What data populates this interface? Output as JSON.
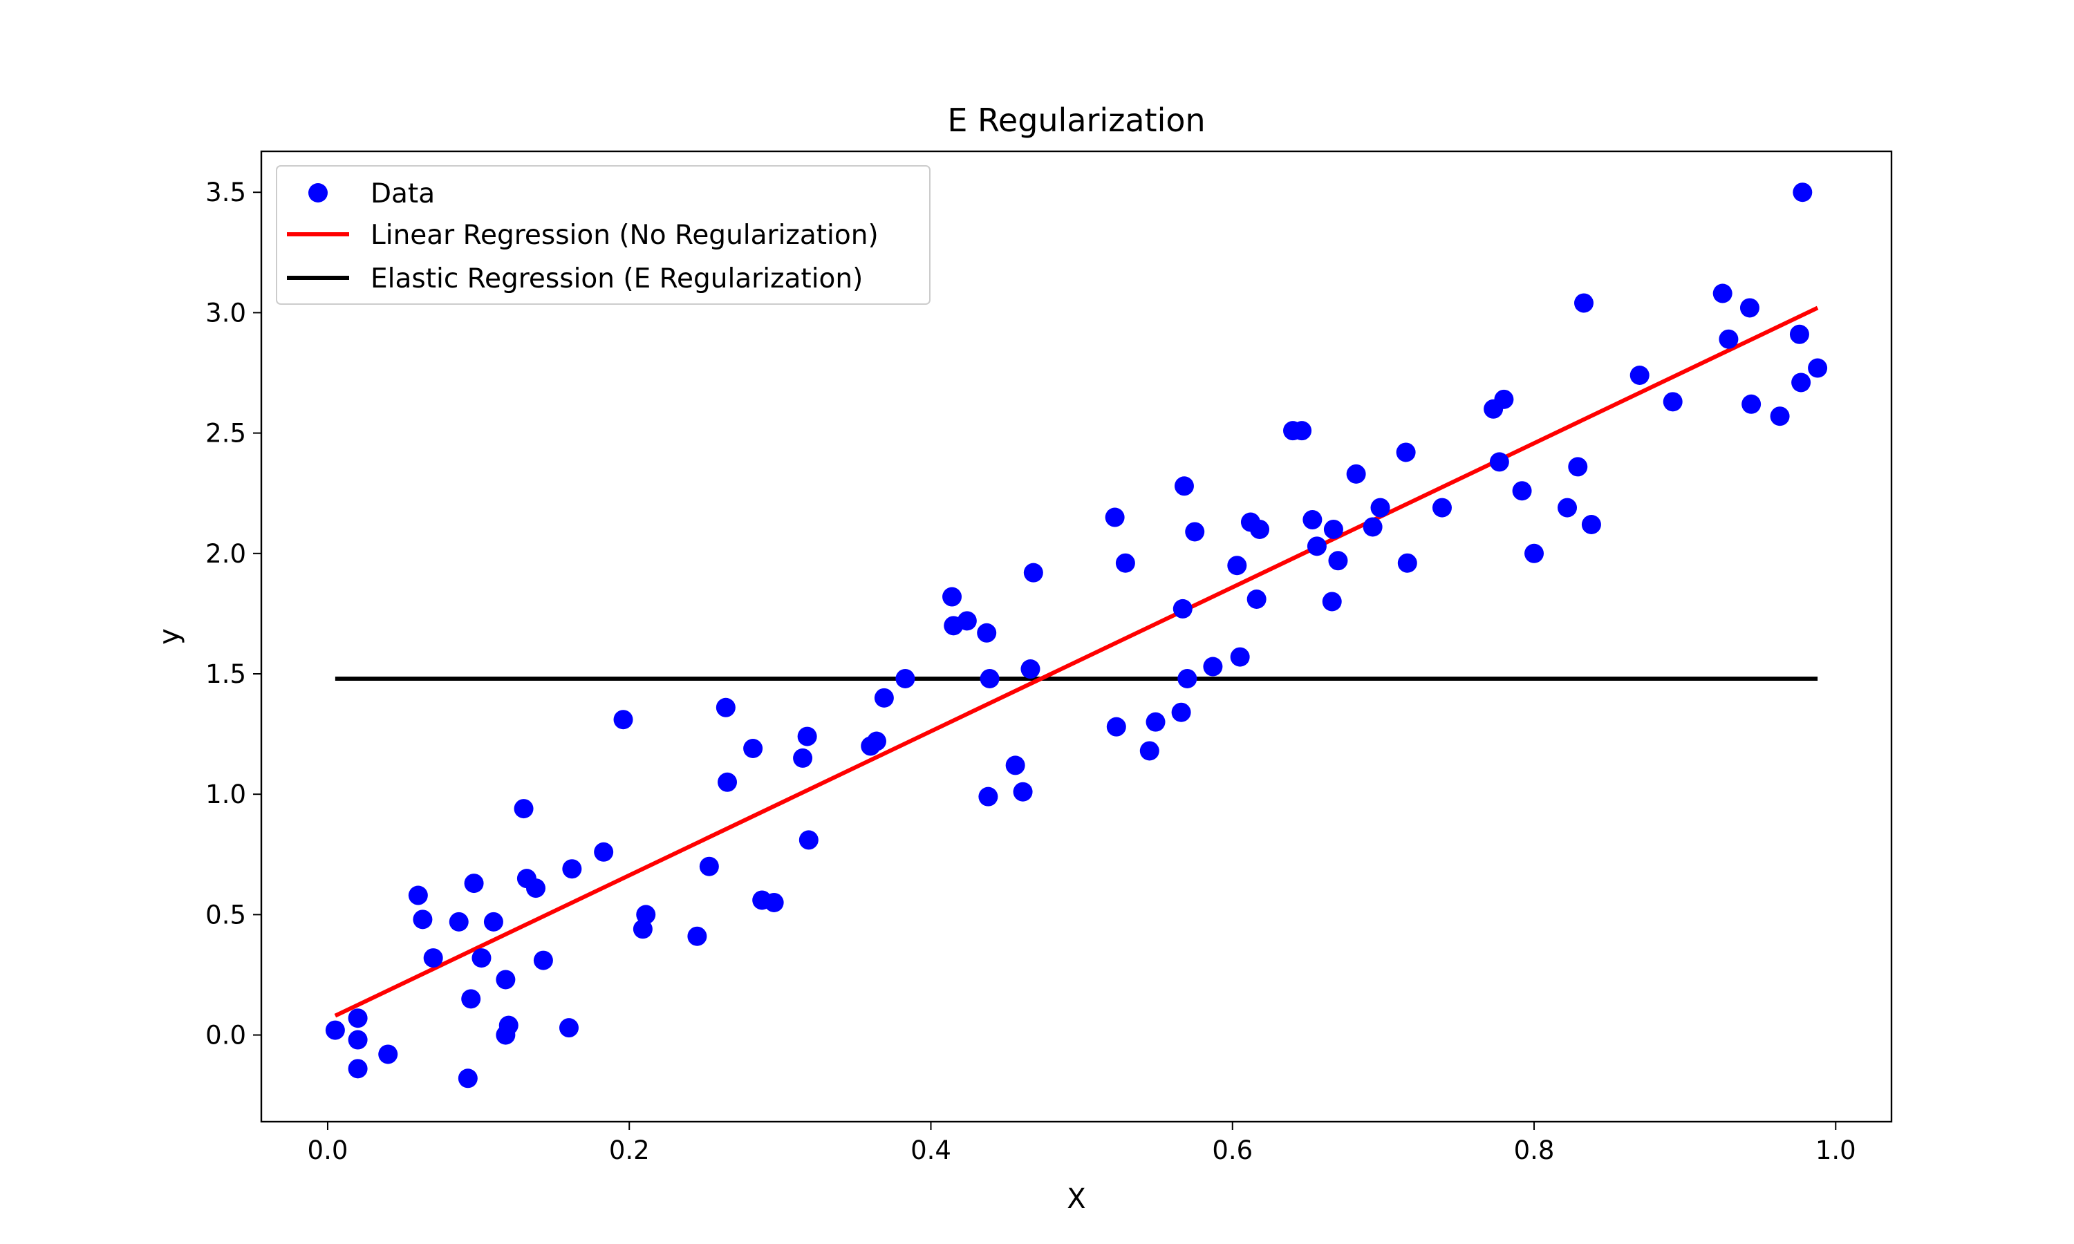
{
  "chart_data": {
    "type": "scatter",
    "title": "E Regularization",
    "xlabel": "X",
    "ylabel": "y",
    "xlim": [
      -0.044,
      1.037
    ],
    "ylim": [
      -0.36,
      3.67
    ],
    "xticks": [
      0.0,
      0.2,
      0.4,
      0.6,
      0.8,
      1.0
    ],
    "xtick_labels": [
      "0.0",
      "0.2",
      "0.4",
      "0.6",
      "0.8",
      "1.0"
    ],
    "yticks": [
      0.0,
      0.5,
      1.0,
      1.5,
      2.0,
      2.5,
      3.0,
      3.5
    ],
    "ytick_labels": [
      "0.0",
      "0.5",
      "1.0",
      "1.5",
      "2.0",
      "2.5",
      "3.0",
      "3.5"
    ],
    "grid": false,
    "legend_position": "upper-left",
    "legend": [
      "Data",
      "Linear Regression (No Regularization)",
      "Elastic Regression (E Regularization)"
    ],
    "colors": {
      "data": "#0000ff",
      "linear": "#ff0000",
      "elastic": "#000000"
    },
    "scatter_points": [
      [
        0.005,
        0.02
      ],
      [
        0.02,
        -0.02
      ],
      [
        0.02,
        0.07
      ],
      [
        0.02,
        -0.14
      ],
      [
        0.04,
        -0.08
      ],
      [
        0.06,
        0.58
      ],
      [
        0.063,
        0.48
      ],
      [
        0.07,
        0.32
      ],
      [
        0.087,
        0.47
      ],
      [
        0.093,
        -0.18
      ],
      [
        0.095,
        0.15
      ],
      [
        0.097,
        0.63
      ],
      [
        0.102,
        0.32
      ],
      [
        0.11,
        0.47
      ],
      [
        0.118,
        0.23
      ],
      [
        0.118,
        0.0
      ],
      [
        0.12,
        0.04
      ],
      [
        0.13,
        0.94
      ],
      [
        0.132,
        0.65
      ],
      [
        0.138,
        0.61
      ],
      [
        0.143,
        0.31
      ],
      [
        0.16,
        0.03
      ],
      [
        0.162,
        0.69
      ],
      [
        0.183,
        0.76
      ],
      [
        0.196,
        1.31
      ],
      [
        0.209,
        0.44
      ],
      [
        0.211,
        0.5
      ],
      [
        0.245,
        0.41
      ],
      [
        0.253,
        0.7
      ],
      [
        0.264,
        1.36
      ],
      [
        0.265,
        1.05
      ],
      [
        0.282,
        1.19
      ],
      [
        0.288,
        0.56
      ],
      [
        0.296,
        0.55
      ],
      [
        0.315,
        1.15
      ],
      [
        0.318,
        1.24
      ],
      [
        0.319,
        0.81
      ],
      [
        0.36,
        1.2
      ],
      [
        0.364,
        1.22
      ],
      [
        0.369,
        1.4
      ],
      [
        0.383,
        1.48
      ],
      [
        0.414,
        1.82
      ],
      [
        0.415,
        1.7
      ],
      [
        0.424,
        1.72
      ],
      [
        0.437,
        1.67
      ],
      [
        0.438,
        0.99
      ],
      [
        0.439,
        1.48
      ],
      [
        0.456,
        1.12
      ],
      [
        0.461,
        1.01
      ],
      [
        0.466,
        1.52
      ],
      [
        0.468,
        1.92
      ],
      [
        0.522,
        2.15
      ],
      [
        0.523,
        1.28
      ],
      [
        0.529,
        1.96
      ],
      [
        0.545,
        1.18
      ],
      [
        0.549,
        1.3
      ],
      [
        0.566,
        1.34
      ],
      [
        0.567,
        1.77
      ],
      [
        0.568,
        2.28
      ],
      [
        0.57,
        1.48
      ],
      [
        0.575,
        2.09
      ],
      [
        0.587,
        1.53
      ],
      [
        0.603,
        1.95
      ],
      [
        0.605,
        1.57
      ],
      [
        0.612,
        2.13
      ],
      [
        0.616,
        1.81
      ],
      [
        0.618,
        2.1
      ],
      [
        0.64,
        2.51
      ],
      [
        0.646,
        2.51
      ],
      [
        0.653,
        2.14
      ],
      [
        0.656,
        2.03
      ],
      [
        0.666,
        1.8
      ],
      [
        0.667,
        2.1
      ],
      [
        0.67,
        1.97
      ],
      [
        0.682,
        2.33
      ],
      [
        0.693,
        2.11
      ],
      [
        0.698,
        2.19
      ],
      [
        0.715,
        2.42
      ],
      [
        0.716,
        1.96
      ],
      [
        0.739,
        2.19
      ],
      [
        0.773,
        2.6
      ],
      [
        0.777,
        2.38
      ],
      [
        0.78,
        2.64
      ],
      [
        0.792,
        2.26
      ],
      [
        0.8,
        2.0
      ],
      [
        0.822,
        2.19
      ],
      [
        0.829,
        2.36
      ],
      [
        0.833,
        3.04
      ],
      [
        0.838,
        2.12
      ],
      [
        0.87,
        2.74
      ],
      [
        0.892,
        2.63
      ],
      [
        0.925,
        3.08
      ],
      [
        0.929,
        2.89
      ],
      [
        0.943,
        3.02
      ],
      [
        0.944,
        2.62
      ],
      [
        0.963,
        2.57
      ],
      [
        0.976,
        2.91
      ],
      [
        0.977,
        2.71
      ],
      [
        0.978,
        3.5
      ],
      [
        0.988,
        2.77
      ]
    ],
    "linear_regression": {
      "x": [
        0.005,
        0.988
      ],
      "y": [
        0.08,
        3.02
      ]
    },
    "elastic_regression": {
      "x": [
        0.005,
        0.988
      ],
      "y": [
        1.48,
        1.48
      ]
    }
  }
}
